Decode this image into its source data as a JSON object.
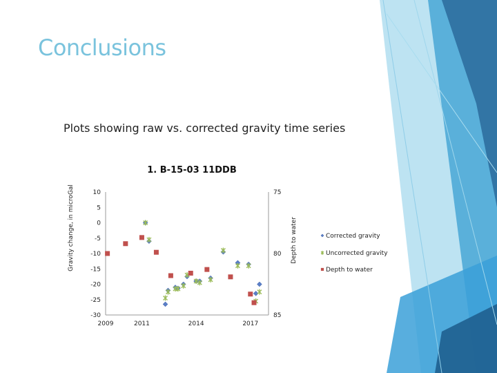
{
  "slide": {
    "title": "Conclusions",
    "subtitle": "Plots showing raw vs. corrected gravity time series"
  },
  "theme": {
    "title_color": "#7ac3dd",
    "corrected_color": "#5b7fc7",
    "uncorrected_color": "#9bbb59",
    "depth_color": "#c0504d"
  },
  "chart_data": {
    "type": "scatter",
    "title": "1. B-15-03 11DDB",
    "ylabel": "Gravity change, in microGal",
    "y2label": "Depth to water",
    "ylim": [
      -30,
      10
    ],
    "y2lim": [
      75,
      85
    ],
    "y2_reversed": true,
    "xlim": [
      2009,
      2018
    ],
    "yticks": [
      "10",
      "5",
      "0",
      "-5",
      "-10",
      "-15",
      "-20",
      "-25",
      "-30"
    ],
    "y2ticks": [
      "75",
      "80",
      "85"
    ],
    "xticks": [
      "2009",
      "2011",
      "2014",
      "2017"
    ],
    "legend_position": "right",
    "series": [
      {
        "name": "Corrected gravity",
        "marker": "diamond",
        "axis": "left",
        "points": [
          {
            "x": 2011.2,
            "y": 0
          },
          {
            "x": 2011.4,
            "y": -6
          },
          {
            "x": 2012.3,
            "y": -26.5
          },
          {
            "x": 2012.45,
            "y": -22
          },
          {
            "x": 2012.85,
            "y": -21
          },
          {
            "x": 2013.0,
            "y": -21.3
          },
          {
            "x": 2013.3,
            "y": -20
          },
          {
            "x": 2013.5,
            "y": -17.5
          },
          {
            "x": 2014.0,
            "y": -19
          },
          {
            "x": 2014.2,
            "y": -19
          },
          {
            "x": 2014.8,
            "y": -18
          },
          {
            "x": 2015.5,
            "y": -9.5
          },
          {
            "x": 2016.3,
            "y": -13
          },
          {
            "x": 2016.9,
            "y": -13.5
          },
          {
            "x": 2017.3,
            "y": -23
          },
          {
            "x": 2017.5,
            "y": -20
          }
        ]
      },
      {
        "name": "Uncorrected gravity",
        "marker": "x",
        "axis": "left",
        "points": [
          {
            "x": 2011.2,
            "y": 0
          },
          {
            "x": 2011.4,
            "y": -5.5
          },
          {
            "x": 2012.3,
            "y": -24.5
          },
          {
            "x": 2012.45,
            "y": -22.5
          },
          {
            "x": 2012.85,
            "y": -21.5
          },
          {
            "x": 2013.0,
            "y": -21.5
          },
          {
            "x": 2013.3,
            "y": -20.5
          },
          {
            "x": 2013.5,
            "y": -17
          },
          {
            "x": 2014.0,
            "y": -19
          },
          {
            "x": 2014.2,
            "y": -19.5
          },
          {
            "x": 2014.8,
            "y": -18.5
          },
          {
            "x": 2015.5,
            "y": -9
          },
          {
            "x": 2016.3,
            "y": -14
          },
          {
            "x": 2016.9,
            "y": -14
          },
          {
            "x": 2017.3,
            "y": -25.5
          },
          {
            "x": 2017.5,
            "y": -22.5
          }
        ]
      },
      {
        "name": "Depth to water",
        "marker": "square",
        "axis": "right",
        "points": [
          {
            "x": 2009.1,
            "y": 80.0
          },
          {
            "x": 2010.1,
            "y": 79.2
          },
          {
            "x": 2011.0,
            "y": 78.7
          },
          {
            "x": 2011.8,
            "y": 79.9
          },
          {
            "x": 2012.6,
            "y": 81.8
          },
          {
            "x": 2013.7,
            "y": 81.6
          },
          {
            "x": 2014.6,
            "y": 81.3
          },
          {
            "x": 2015.9,
            "y": 81.9
          },
          {
            "x": 2017.0,
            "y": 83.3
          },
          {
            "x": 2017.2,
            "y": 84.0
          }
        ]
      }
    ]
  }
}
